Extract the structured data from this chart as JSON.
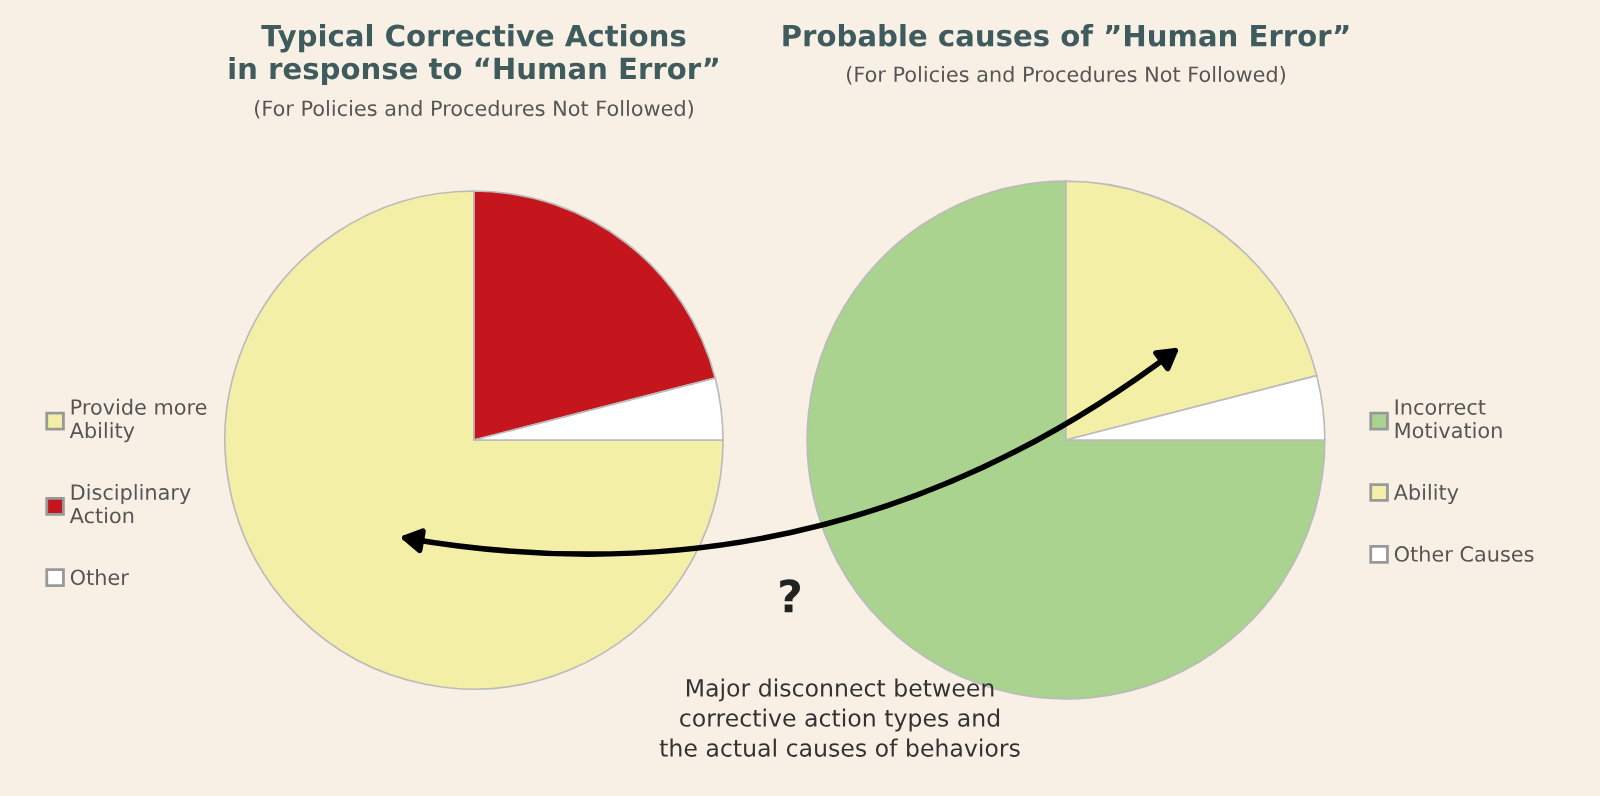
{
  "chart_data": [
    {
      "type": "pie",
      "title": "Typical Corrective Actions\nin response to “Human Error”",
      "subtitle": "(For Policies and Procedures Not Followed)",
      "categories": [
        "Provide more\nAbility",
        "Disciplinary\nAction",
        "Other"
      ],
      "values": [
        75,
        21,
        4
      ],
      "colors": [
        "#f4efa6",
        "#c4161c",
        "#ffffff"
      ],
      "legend": "left",
      "annotations": [
        "?",
        "Major disconnect between\ncorrective action types and\nthe actual causes of behaviors"
      ]
    },
    {
      "type": "pie",
      "title": "Probable causes of ”Human Error”",
      "subtitle": "(For Policies and Procedures Not Followed)",
      "categories": [
        "Incorrect\nMotivation",
        "Ability",
        "Other Causes"
      ],
      "values": [
        75,
        21,
        4
      ],
      "colors": [
        "#a9d38e",
        "#f4efa6",
        "#ffffff"
      ],
      "legend": "right"
    }
  ]
}
